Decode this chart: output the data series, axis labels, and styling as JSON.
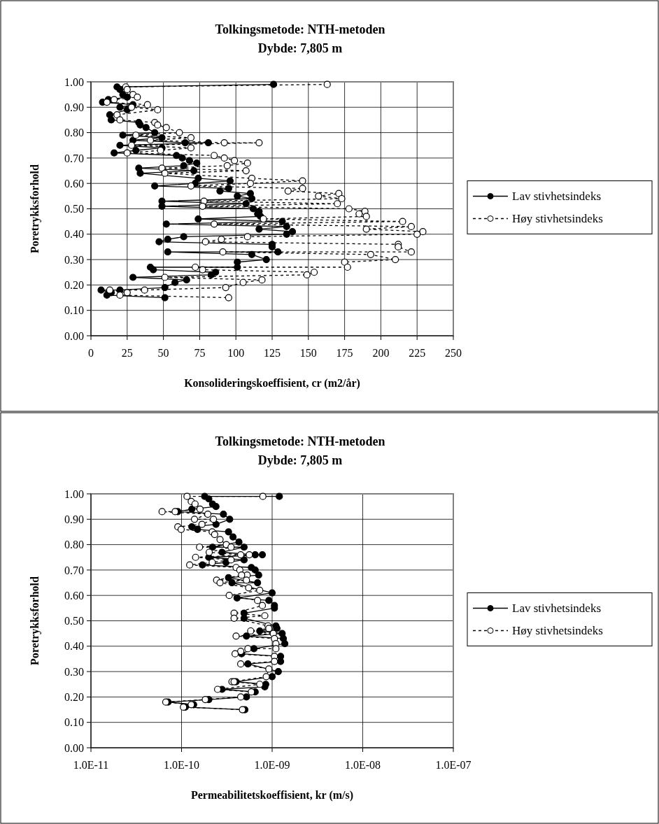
{
  "chart_data": [
    {
      "type": "line",
      "title": "Tolkingsmetode: NTH-metoden",
      "subtitle": "Dybde: 7,805 m",
      "xlabel": "Konsolideringskoeffisient, cr (m2/år)",
      "ylabel": "Poretrykksforhold",
      "xlim": [
        0,
        250
      ],
      "xticks": [
        0,
        25,
        50,
        75,
        100,
        125,
        150,
        175,
        200,
        225,
        250
      ],
      "ylim": [
        0,
        1
      ],
      "yticks": [
        {
          "value": 0,
          "label": "0.00"
        },
        {
          "value": 0.1,
          "label": "0.10"
        },
        {
          "value": 0.2,
          "label": "0.20"
        },
        {
          "value": 0.3,
          "label": "0.30"
        },
        {
          "value": 0.4,
          "label": "0.40"
        },
        {
          "value": 0.5,
          "label": "0.50"
        },
        {
          "value": 0.6,
          "label": "0.60"
        },
        {
          "value": 0.7,
          "label": "0.70"
        },
        {
          "value": 0.8,
          "label": "0.80"
        },
        {
          "value": 0.9,
          "label": "0.90"
        },
        {
          "value": 1,
          "label": "1.00"
        }
      ],
      "grid": true,
      "legend": "right",
      "marker": "circle",
      "series": [
        {
          "name": "Lav stivhetsindeks",
          "color": "#000000",
          "line_style": "solid",
          "x": [
            126,
            18,
            20,
            22,
            25,
            12,
            8,
            29,
            20,
            25,
            13,
            14,
            33,
            34,
            38,
            44,
            22,
            49,
            29,
            65,
            81,
            20,
            49,
            31,
            16,
            59,
            63,
            68,
            73,
            64,
            33,
            71,
            34,
            74,
            96,
            72,
            44,
            95,
            89,
            110,
            101,
            111,
            49,
            107,
            49,
            112,
            116,
            115,
            117,
            74,
            132,
            52,
            135,
            116,
            139,
            135,
            64,
            53,
            47,
            125,
            125,
            129,
            53,
            111,
            121,
            101,
            101,
            41,
            43,
            86,
            83,
            29,
            66,
            58,
            51,
            20,
            7,
            14,
            11,
            51
          ],
          "values": [
            0.99,
            0.98,
            0.97,
            0.95,
            0.94,
            0.93,
            0.92,
            0.91,
            0.9,
            0.89,
            0.87,
            0.85,
            0.84,
            0.83,
            0.82,
            0.8,
            0.79,
            0.78,
            0.77,
            0.76,
            0.76,
            0.75,
            0.74,
            0.73,
            0.72,
            0.71,
            0.7,
            0.69,
            0.68,
            0.67,
            0.66,
            0.65,
            0.64,
            0.62,
            0.61,
            0.6,
            0.59,
            0.58,
            0.57,
            0.56,
            0.55,
            0.54,
            0.53,
            0.52,
            0.51,
            0.5,
            0.49,
            0.48,
            0.47,
            0.46,
            0.45,
            0.44,
            0.43,
            0.42,
            0.41,
            0.4,
            0.39,
            0.38,
            0.37,
            0.36,
            0.35,
            0.33,
            0.33,
            0.32,
            0.3,
            0.29,
            0.27,
            0.27,
            0.26,
            0.25,
            0.24,
            0.23,
            0.22,
            0.21,
            0.19,
            0.18,
            0.18,
            0.17,
            0.16,
            0.15
          ]
        },
        {
          "name": "Høy stivhetsindeks",
          "color": "#000000",
          "line_style": "dashed",
          "x": [
            163,
            24,
            25,
            29,
            32,
            16,
            11,
            39,
            28,
            46,
            18,
            20,
            44,
            46,
            52,
            61,
            31,
            69,
            41,
            92,
            116,
            28,
            69,
            48,
            25,
            85,
            92,
            99,
            108,
            94,
            49,
            107,
            51,
            111,
            146,
            110,
            69,
            146,
            136,
            171,
            157,
            173,
            78,
            170,
            77,
            178,
            189,
            185,
            190,
            119,
            215,
            85,
            221,
            190,
            229,
            225,
            108,
            90,
            79,
            212,
            212,
            221,
            91,
            193,
            210,
            175,
            177,
            72,
            77,
            154,
            149,
            51,
            118,
            105,
            93,
            37,
            13,
            25,
            20,
            95
          ],
          "values": [
            0.99,
            0.98,
            0.97,
            0.95,
            0.94,
            0.93,
            0.92,
            0.91,
            0.9,
            0.89,
            0.87,
            0.85,
            0.84,
            0.83,
            0.82,
            0.8,
            0.79,
            0.78,
            0.77,
            0.76,
            0.76,
            0.75,
            0.74,
            0.73,
            0.72,
            0.71,
            0.7,
            0.69,
            0.68,
            0.67,
            0.66,
            0.65,
            0.64,
            0.62,
            0.61,
            0.6,
            0.59,
            0.58,
            0.57,
            0.56,
            0.55,
            0.54,
            0.53,
            0.52,
            0.51,
            0.5,
            0.49,
            0.48,
            0.47,
            0.46,
            0.45,
            0.44,
            0.43,
            0.42,
            0.41,
            0.4,
            0.39,
            0.38,
            0.37,
            0.36,
            0.35,
            0.33,
            0.33,
            0.32,
            0.3,
            0.29,
            0.27,
            0.27,
            0.26,
            0.25,
            0.24,
            0.23,
            0.22,
            0.21,
            0.19,
            0.18,
            0.18,
            0.17,
            0.16,
            0.15
          ]
        }
      ]
    },
    {
      "type": "line",
      "title": "Tolkingsmetode: NTH-metoden",
      "subtitle": "Dybde: 7,805 m",
      "xlabel": "Permeabilitetskoeffisient, kr (m/s)",
      "ylabel": "Poretrykksforhold",
      "log": "x",
      "xlim": [
        1e-11,
        1e-07
      ],
      "xticks": [
        {
          "value": 1e-11,
          "label": "1.0E-11"
        },
        {
          "value": 1e-10,
          "label": "1.0E-10"
        },
        {
          "value": 1e-09,
          "label": "1.0E-09"
        },
        {
          "value": 1e-08,
          "label": "1.0E-08"
        },
        {
          "value": 1e-07,
          "label": "1.0E-07"
        }
      ],
      "ylim": [
        0,
        1
      ],
      "yticks": [
        {
          "value": 0,
          "label": "0.00"
        },
        {
          "value": 0.1,
          "label": "0.10"
        },
        {
          "value": 0.2,
          "label": "0.20"
        },
        {
          "value": 0.3,
          "label": "0.30"
        },
        {
          "value": 0.4,
          "label": "0.40"
        },
        {
          "value": 0.5,
          "label": "0.50"
        },
        {
          "value": 0.6,
          "label": "0.60"
        },
        {
          "value": 0.7,
          "label": "0.70"
        },
        {
          "value": 0.8,
          "label": "0.80"
        },
        {
          "value": 0.9,
          "label": "0.90"
        },
        {
          "value": 1,
          "label": "1.00"
        }
      ],
      "grid": true,
      "legend": "right",
      "marker": "circle",
      "series": [
        {
          "name": "Lav stivhetsindeks",
          "color": "#000000",
          "line_style": "solid",
          "x": [
            1.2e-09,
            1.8e-10,
            2e-10,
            2.2e-10,
            2.4e-10,
            1.3e-10,
            9.1e-11,
            2.9e-10,
            3.4e-10,
            2.4e-10,
            1.3e-10,
            1.5e-10,
            3.3e-10,
            3.7e-10,
            4.3e-10,
            2.2e-10,
            4.9e-10,
            2.8e-10,
            6.5e-10,
            7.8e-10,
            2e-10,
            4.9e-10,
            3.1e-10,
            1.7e-10,
            5.9e-10,
            6.5e-10,
            7.1e-10,
            3.3e-10,
            6.9e-10,
            3.6e-10,
            1e-09,
            4.1e-10,
            9.2e-10,
            1.06e-09,
            1.06e-09,
            4.9e-10,
            4.9e-10,
            1.1e-09,
            1.13e-09,
            7.3e-10,
            1.29e-09,
            5.2e-10,
            1.33e-09,
            1.38e-09,
            6.3e-10,
            4.6e-10,
            1.24e-09,
            1.24e-09,
            5.4e-10,
            1.17e-09,
            1e-09,
            4e-10,
            8.5e-10,
            8.3e-10,
            2.8e-10,
            6.5e-10,
            5.2e-10,
            2e-10,
            7.1e-11,
            1.36e-10,
            1.1e-10,
            5e-10
          ],
          "values": [
            0.99,
            0.99,
            0.98,
            0.96,
            0.95,
            0.94,
            0.93,
            0.92,
            0.9,
            0.88,
            0.87,
            0.86,
            0.85,
            0.83,
            0.81,
            0.79,
            0.79,
            0.77,
            0.76,
            0.76,
            0.75,
            0.74,
            0.73,
            0.72,
            0.71,
            0.7,
            0.68,
            0.67,
            0.65,
            0.65,
            0.61,
            0.59,
            0.58,
            0.56,
            0.55,
            0.53,
            0.51,
            0.48,
            0.47,
            0.46,
            0.45,
            0.44,
            0.43,
            0.41,
            0.39,
            0.37,
            0.36,
            0.34,
            0.33,
            0.3,
            0.28,
            0.26,
            0.25,
            0.24,
            0.23,
            0.22,
            0.2,
            0.19,
            0.18,
            0.17,
            0.16,
            0.15
          ]
        },
        {
          "name": "Høy stivhetsindeks",
          "color": "#000000",
          "line_style": "dashed",
          "x": [
            7.9e-10,
            1.15e-10,
            1.28e-10,
            1.41e-10,
            1.6e-10,
            8.5e-11,
            6.1e-11,
            1.95e-10,
            1.39e-10,
            2.25e-10,
            1.68e-10,
            9.1e-11,
            9.9e-11,
            2.18e-10,
            2.32e-10,
            2.66e-10,
            3.12e-10,
            1.58e-10,
            3.52e-10,
            2.02e-10,
            4.5e-10,
            5.6e-10,
            1.43e-10,
            3.52e-10,
            2.18e-10,
            1.23e-10,
            4e-10,
            4.4e-10,
            5.3e-10,
            4.6e-10,
            2.44e-10,
            5.2e-10,
            2.66e-10,
            5.5e-10,
            7.3e-10,
            3.36e-10,
            6.9e-10,
            7.8e-10,
            3.8e-10,
            8.3e-10,
            3.8e-10,
            9e-10,
            9.2e-10,
            5.8e-10,
            1.03e-09,
            4e-10,
            1.06e-09,
            1.1e-09,
            1.1e-09,
            5.4e-10,
            4.5e-10,
            3.9e-10,
            1.06e-09,
            1.06e-09,
            4.5e-10,
            9.2e-10,
            8.6e-10,
            3.6e-10,
            3.8e-10,
            7.3e-10,
            2.5e-10,
            5.9e-10,
            4.5e-10,
            1.83e-10,
            6.7e-11,
            1.28e-10,
            1.05e-10,
            4.7e-10
          ],
          "values": [
            0.99,
            0.99,
            0.97,
            0.96,
            0.94,
            0.93,
            0.93,
            0.92,
            0.9,
            0.9,
            0.88,
            0.87,
            0.86,
            0.85,
            0.84,
            0.82,
            0.8,
            0.79,
            0.79,
            0.77,
            0.76,
            0.76,
            0.75,
            0.74,
            0.73,
            0.72,
            0.71,
            0.7,
            0.68,
            0.68,
            0.66,
            0.66,
            0.65,
            0.63,
            0.62,
            0.6,
            0.58,
            0.56,
            0.53,
            0.52,
            0.51,
            0.48,
            0.47,
            0.46,
            0.45,
            0.44,
            0.43,
            0.41,
            0.39,
            0.39,
            0.38,
            0.37,
            0.36,
            0.34,
            0.33,
            0.31,
            0.28,
            0.26,
            0.26,
            0.25,
            0.23,
            0.22,
            0.2,
            0.19,
            0.18,
            0.17,
            0.16,
            0.15
          ]
        }
      ]
    }
  ]
}
